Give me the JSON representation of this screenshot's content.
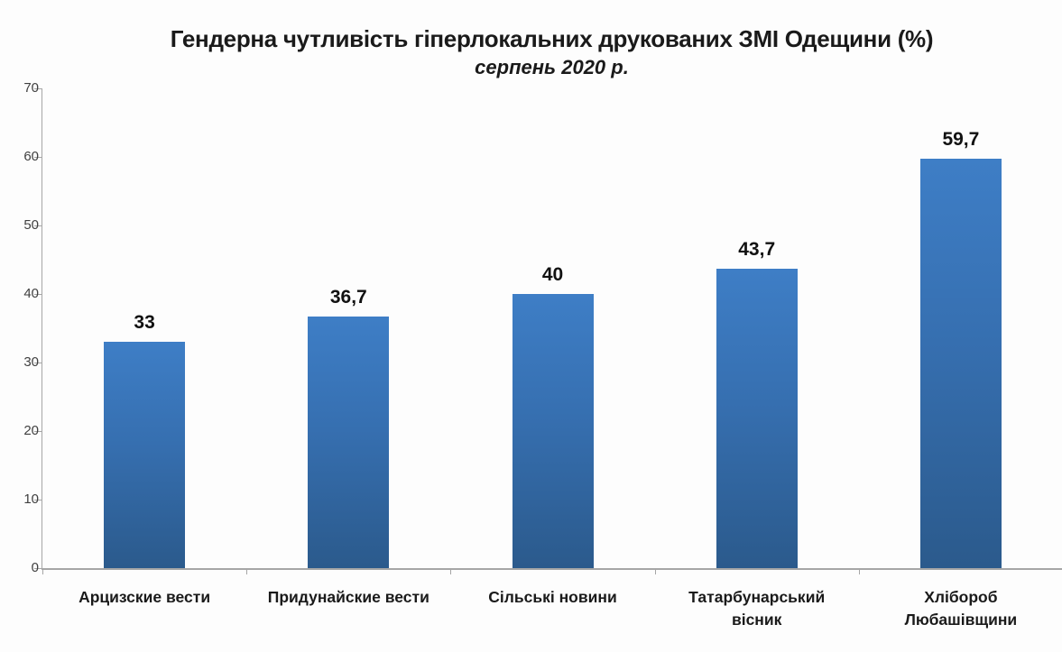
{
  "chart_data": {
    "type": "bar",
    "title": "Гендерна чутливість гіперлокальних друкованих ЗМІ Одещини (%)",
    "subtitle": "серпень 2020 р.",
    "categories": [
      "Арцизские вести",
      "Придунайские вести",
      "Сільські новини",
      "Татарбунарський вісник",
      "Хлібороб Любашівщини"
    ],
    "values": [
      33,
      36.7,
      40,
      43.7,
      59.7
    ],
    "value_labels": [
      "33",
      "36,7",
      "40",
      "43,7",
      "59,7"
    ],
    "xlabel": "",
    "ylabel": "",
    "ylim": [
      0,
      70
    ],
    "yticks": [
      0,
      10,
      20,
      30,
      40,
      50,
      60,
      70
    ],
    "grid": false,
    "legend": false,
    "bar_color_top": "#3e7ec6",
    "bar_color_bottom": "#2b5a8c",
    "axis_color": "#a6a6a6",
    "text_color": "#1a1a1a"
  }
}
